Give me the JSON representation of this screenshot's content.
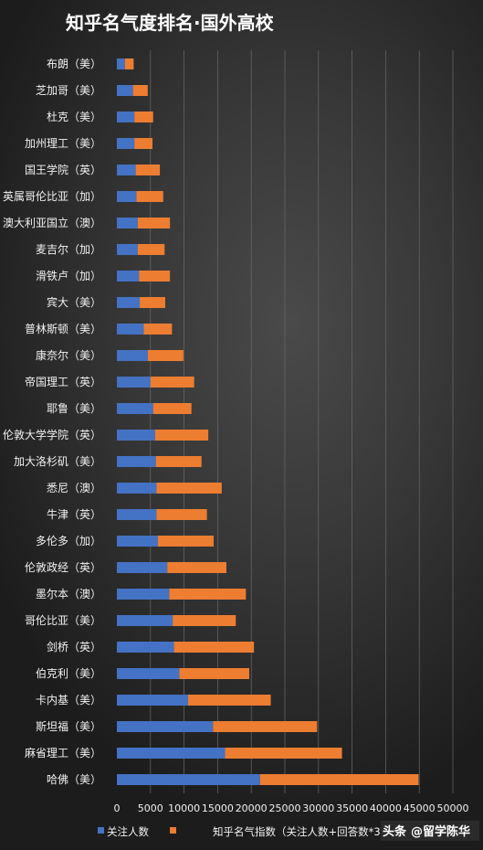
{
  "chart_data": {
    "type": "bar",
    "orientation": "horizontal",
    "stacked": true,
    "title": "知乎名气度排名·国外高校",
    "categories": [
      "布朗（美）",
      "芝加哥（美）",
      "杜克（美）",
      "加州理工（美）",
      "国王学院（英）",
      "英属哥伦比亚（加）",
      "澳大利亚国立（澳）",
      "麦吉尔（加）",
      "滑铁卢（加）",
      "宾大（美）",
      "普林斯顿（美）",
      "康奈尔（美）",
      "帝国理工（英）",
      "耶鲁（美）",
      "伦敦大学学院（英）",
      "加大洛杉矶（美）",
      "悉尼（澳）",
      "牛津（英）",
      "多伦多（加）",
      "伦敦政经（英）",
      "墨尔本（澳）",
      "哥伦比亚（美）",
      "剑桥（英）",
      "伯克利（美）",
      "卡内基（美）",
      "斯坦福（美）",
      "麻省理工（美）",
      "哈佛（美）"
    ],
    "series": [
      {
        "name": "关注人数",
        "color": "#4472c4",
        "values": [
          1200,
          2400,
          2600,
          2600,
          2800,
          2900,
          3100,
          3100,
          3300,
          3400,
          4000,
          4600,
          5000,
          5400,
          5700,
          5800,
          5900,
          5900,
          6100,
          7500,
          7800,
          8300,
          8500,
          9300,
          10600,
          14300,
          16100,
          21300
        ]
      },
      {
        "name": "知乎名气指数（关注人数+回答数*3）",
        "color": "#ed7d31",
        "values": [
          1300,
          2200,
          2800,
          2700,
          3600,
          4000,
          4800,
          4000,
          4600,
          3800,
          4200,
          5300,
          6500,
          5700,
          7900,
          6800,
          9700,
          7500,
          8300,
          8800,
          11400,
          9400,
          11900,
          10400,
          12300,
          15500,
          17400,
          23600
        ]
      }
    ],
    "xlim": [
      0,
      50000
    ],
    "xticks": [
      0,
      5000,
      10000,
      15000,
      20000,
      25000,
      30000,
      35000,
      40000,
      45000,
      50000
    ],
    "grid": true,
    "legend_position": "bottom"
  },
  "watermark": {
    "prefix": "头条",
    "handle": "@留学陈华"
  }
}
